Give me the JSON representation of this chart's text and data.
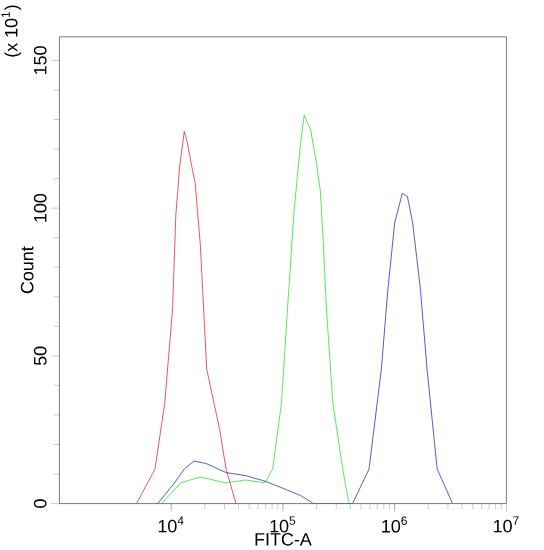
{
  "chart_data": {
    "type": "line",
    "xlabel": "FITC-A",
    "ylabel": "Count",
    "annotations": [
      "(x 10$^{1}$)"
    ],
    "log": "x",
    "grid": false,
    "legend": false,
    "marker": "none",
    "line_style": "solid",
    "xlim": [
      1000,
      10000000
    ],
    "ylim": [
      0,
      158
    ],
    "xticks": [
      {
        "value": 10000,
        "label": "10$^{4}$"
      },
      {
        "value": 100000,
        "label": "10$^{5}$"
      },
      {
        "value": 1000000,
        "label": "10$^{6}$"
      },
      {
        "value": 10000000,
        "label": "10$^{7}$"
      }
    ],
    "yticks": [
      0,
      50,
      100,
      150
    ],
    "series": [
      {
        "color": "#e03030",
        "x": [
          4900,
          7170,
          8760,
          10300,
          11000,
          11900,
          13100,
          14000,
          15300,
          16400,
          18200,
          19000,
          20800,
          27200,
          31000,
          38000
        ],
        "values": [
          0,
          11.7,
          34,
          66,
          97.5,
          114,
          126,
          122,
          114,
          108.5,
          88,
          74.7,
          45.5,
          25,
          11.7,
          0
        ]
      },
      {
        "color": "#30e030",
        "x": [
          8200,
          12200,
          18200,
          31000,
          46000,
          69000,
          81000,
          97000,
          110000,
          126000,
          144000,
          155000,
          177000,
          200000,
          216000,
          230000,
          245000,
          280000,
          343000,
          390000
        ],
        "values": [
          0,
          7,
          9,
          7,
          8,
          7,
          11.7,
          34,
          66,
          99.5,
          122,
          131.5,
          126.5,
          115,
          106,
          88,
          66,
          34,
          11.7,
          0
        ]
      },
      {
        "color": "#3030c0",
        "x": [
          7600,
          10700,
          13100,
          16000,
          20800,
          31000,
          46000,
          69000,
          103000,
          144000,
          188000,
          420000,
          590000,
          760000,
          870000,
          1000000,
          1170000,
          1300000,
          1450000,
          1700000,
          1950000,
          2400000,
          3300000
        ],
        "values": [
          0,
          7,
          11.7,
          14.4,
          13.5,
          10.5,
          9.5,
          7.6,
          5,
          2.7,
          0,
          0,
          11.7,
          45.5,
          72.5,
          95,
          105,
          104,
          95,
          72.5,
          45.5,
          11.7,
          0
        ]
      }
    ]
  }
}
